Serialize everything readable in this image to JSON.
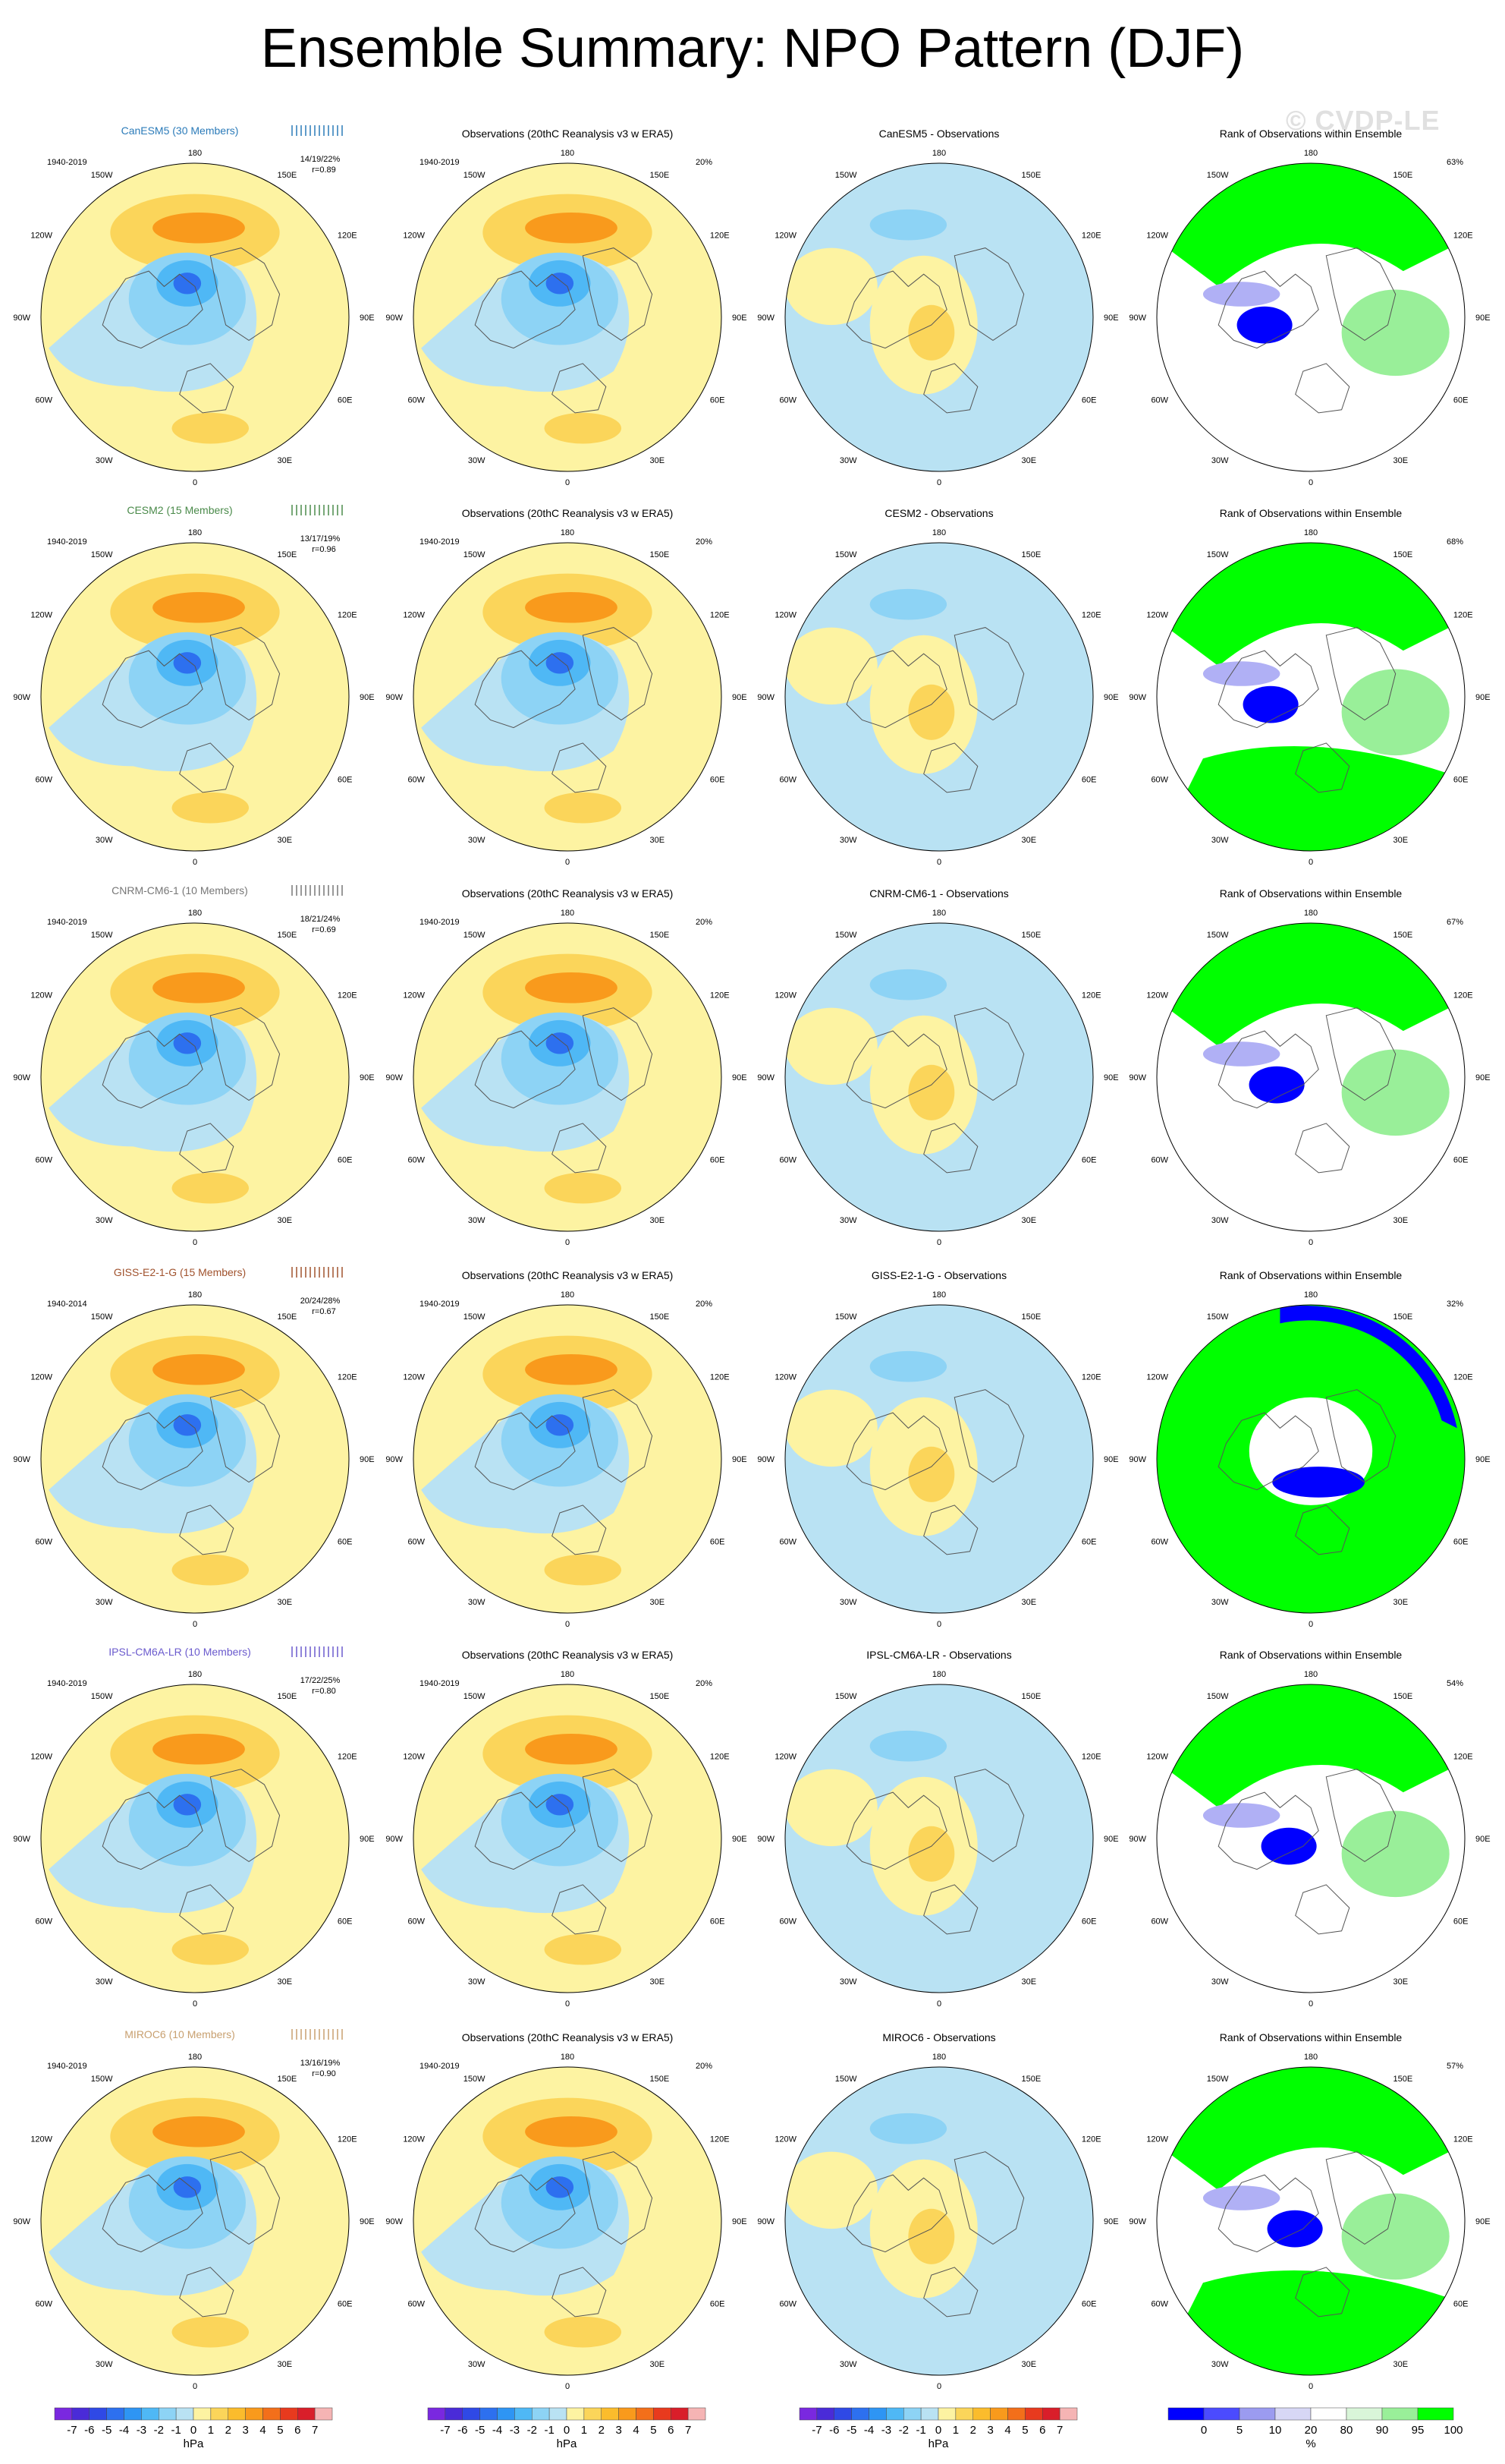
{
  "title": "Ensemble Summary: NPO Pattern (DJF)",
  "watermark": "© CVDP-LE",
  "longitude_labels": [
    "180",
    "150E",
    "120E",
    "90E",
    "60E",
    "30E",
    "0",
    "30W",
    "60W",
    "90W",
    "120W",
    "150W"
  ],
  "rows": [
    {
      "model": "CanESM5",
      "members": "CanESM5 (30 Members)",
      "model_color": "#2b7bb9",
      "period": "1940-2019",
      "stats_line1": "14/19/22%",
      "stats_line2": "r=0.89",
      "obs_title": "Observations (20thC Reanalysis v3 w ERA5)",
      "obs_period": "1940-2019",
      "obs_pct": "20%",
      "diff_title": "CanESM5 - Observations",
      "rank_title": "Rank of Observations within Ensemble",
      "rank_pct": "63%"
    },
    {
      "model": "CESM2",
      "members": "CESM2 (15 Members)",
      "model_color": "#4a8a4a",
      "period": "1940-2019",
      "stats_line1": "13/17/19%",
      "stats_line2": "r=0.96",
      "obs_title": "Observations (20thC Reanalysis v3 w ERA5)",
      "obs_period": "1940-2019",
      "obs_pct": "20%",
      "diff_title": "CESM2 - Observations",
      "rank_title": "Rank of Observations within Ensemble",
      "rank_pct": "68%"
    },
    {
      "model": "CNRM-CM6-1",
      "members": "CNRM-CM6-1 (10 Members)",
      "model_color": "#777777",
      "period": "1940-2019",
      "stats_line1": "18/21/24%",
      "stats_line2": "r=0.69",
      "obs_title": "Observations (20thC Reanalysis v3 w ERA5)",
      "obs_period": "1940-2019",
      "obs_pct": "20%",
      "diff_title": "CNRM-CM6-1 - Observations",
      "rank_title": "Rank of Observations within Ensemble",
      "rank_pct": "67%"
    },
    {
      "model": "GISS-E2-1-G",
      "members": "GISS-E2-1-G (15 Members)",
      "model_color": "#a0522d",
      "period": "1940-2014",
      "stats_line1": "20/24/28%",
      "stats_line2": "r=0.67",
      "obs_title": "Observations (20thC Reanalysis v3 w ERA5)",
      "obs_period": "1940-2019",
      "obs_pct": "20%",
      "diff_title": "GISS-E2-1-G - Observations",
      "rank_title": "Rank of Observations within Ensemble",
      "rank_pct": "32%"
    },
    {
      "model": "IPSL-CM6A-LR",
      "members": "IPSL-CM6A-LR (10 Members)",
      "model_color": "#6a5acd",
      "period": "1940-2019",
      "stats_line1": "17/22/25%",
      "stats_line2": "r=0.80",
      "obs_title": "Observations (20thC Reanalysis v3 w ERA5)",
      "obs_period": "1940-2019",
      "obs_pct": "20%",
      "diff_title": "IPSL-CM6A-LR - Observations",
      "rank_title": "Rank of Observations within Ensemble",
      "rank_pct": "54%"
    },
    {
      "model": "MIROC6",
      "members": "MIROC6 (10 Members)",
      "model_color": "#c8a070",
      "period": "1940-2019",
      "stats_line1": "13/16/19%",
      "stats_line2": "r=0.90",
      "obs_title": "Observations (20thC Reanalysis v3 w ERA5)",
      "obs_period": "1940-2019",
      "obs_pct": "20%",
      "diff_title": "MIROC6 - Observations",
      "rank_title": "Rank of Observations within Ensemble",
      "rank_pct": "57%"
    }
  ],
  "colorbar_hpa": {
    "labels": [
      "-7",
      "-6",
      "-5",
      "-4",
      "-3",
      "-2",
      "-1",
      "0",
      "1",
      "2",
      "3",
      "4",
      "5",
      "6",
      "7"
    ],
    "colors": [
      "#7a28e0",
      "#4a2bd8",
      "#2f49e6",
      "#2d70ef",
      "#2e95f4",
      "#4fb8f5",
      "#8dd3f5",
      "#b9e2f3",
      "#fdf3a2",
      "#fbd55a",
      "#fbbc2c",
      "#f99a1c",
      "#f36f1a",
      "#e83a1e",
      "#d91e2a",
      "#f5b4b4"
    ],
    "unit": "hPa"
  },
  "colorbar_rank": {
    "labels": [
      "0",
      "5",
      "10",
      "20",
      "80",
      "90",
      "95",
      "100"
    ],
    "colors": [
      "#0000ff",
      "#4b4bff",
      "#9b9bf0",
      "#d7d7f5",
      "#ffffff",
      "#d9f5d9",
      "#99ef99",
      "#00ff00"
    ],
    "unit": "%"
  },
  "map_colors": {
    "pos_light": "#fdf3a2",
    "pos_mid": "#fbd55a",
    "pos_strong": "#f99a1c",
    "pos_max": "#f36f1a",
    "neg_light": "#b9e2f3",
    "neg_mid": "#8dd3f5",
    "neg_strong": "#4fb8f5",
    "neg_max": "#2e95f4",
    "neg_core": "#2d70ef",
    "rank_high": "#00ff00",
    "rank_mid": "#99ef99",
    "rank_low": "#0000ff",
    "rank_lowmid": "#b0b0f5"
  }
}
